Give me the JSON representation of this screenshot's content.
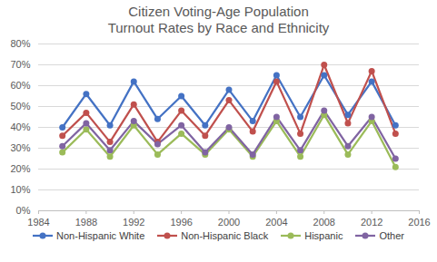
{
  "chart_data": {
    "type": "line",
    "title": "Citizen Voting-Age Population",
    "subtitle": "Turnout Rates by Race and Ethnicity",
    "x": [
      1986,
      1988,
      1990,
      1992,
      1994,
      1996,
      1998,
      2000,
      2002,
      2004,
      2006,
      2008,
      2010,
      2012,
      2014
    ],
    "series": [
      {
        "name": "Non-Hispanic White",
        "color": "#4472c4",
        "values": [
          40,
          56,
          41,
          62,
          44,
          55,
          41,
          58,
          43,
          65,
          45,
          65,
          46,
          62,
          41
        ]
      },
      {
        "name": "Non-Hispanic Black",
        "color": "#c0504d",
        "values": [
          36,
          47,
          33,
          51,
          33,
          48,
          36,
          53,
          38,
          62,
          37,
          70,
          42,
          67,
          37
        ]
      },
      {
        "name": "Hispanic",
        "color": "#9bbb59",
        "values": [
          28,
          39,
          26,
          41,
          27,
          37,
          27,
          39,
          26,
          43,
          26,
          46,
          27,
          43,
          21
        ]
      },
      {
        "name": "Other",
        "color": "#8064a2",
        "values": [
          31,
          42,
          29,
          43,
          32,
          41,
          28,
          40,
          27,
          45,
          29,
          48,
          31,
          45,
          25
        ]
      }
    ],
    "xlim": [
      1984,
      2016
    ],
    "xticks": [
      1984,
      1988,
      1992,
      1996,
      2000,
      2004,
      2008,
      2012,
      2016
    ],
    "ylim": [
      0,
      80
    ],
    "yticks": [
      {
        "value": 0,
        "label": "0%"
      },
      {
        "value": 10,
        "label": "10%"
      },
      {
        "value": 20,
        "label": "20%"
      },
      {
        "value": 30,
        "label": "30%"
      },
      {
        "value": 40,
        "label": "40%"
      },
      {
        "value": 50,
        "label": "50%"
      },
      {
        "value": 60,
        "label": "60%"
      },
      {
        "value": 70,
        "label": "70%"
      },
      {
        "value": 80,
        "label": "80%"
      }
    ],
    "grid": true,
    "legend": "bottom",
    "marker": "circle"
  }
}
